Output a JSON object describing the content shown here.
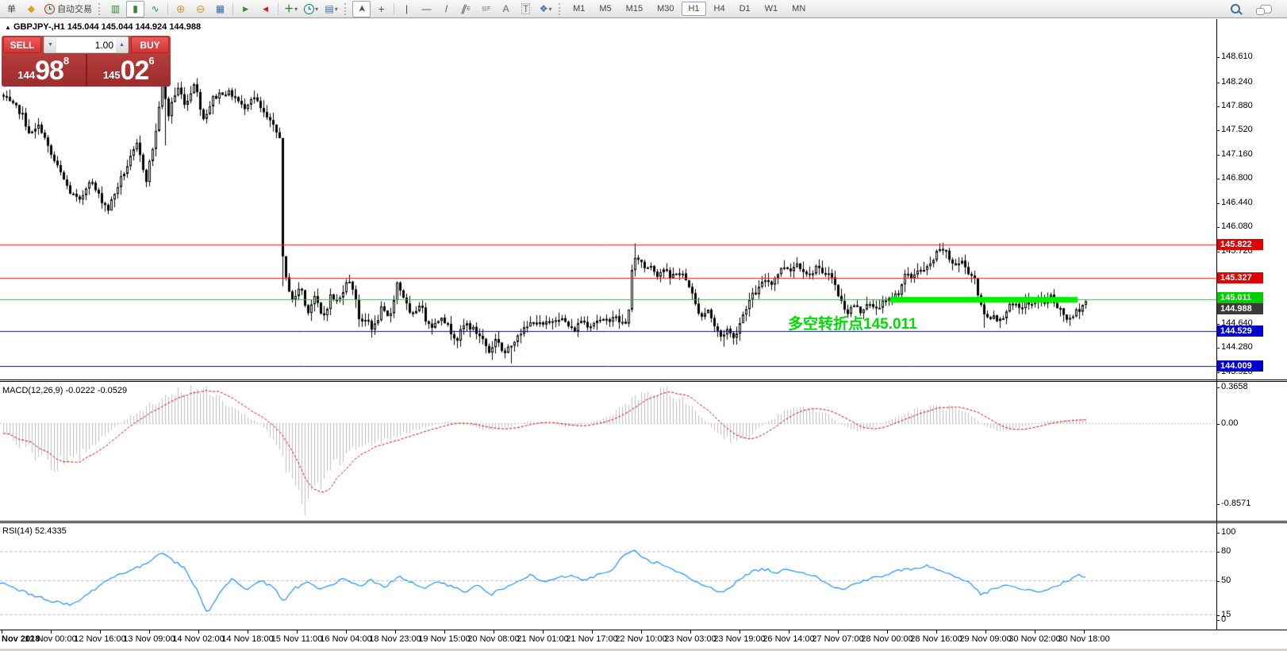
{
  "toolbar": {
    "partial_label": "单",
    "autotrade_label": "自动交易",
    "timeframes": [
      "M1",
      "M5",
      "M15",
      "M30",
      "H1",
      "H4",
      "D1",
      "W1",
      "MN"
    ],
    "active_timeframe": "H1"
  },
  "icons": {
    "new_order": "◆",
    "bars_chart": "▥",
    "candle_chart": "▮",
    "line_chart": "∿",
    "zoom_in": "⊕",
    "zoom_out": "⊖",
    "tile_windows": "▦",
    "auto_scroll": "▶",
    "chart_shift": "◀",
    "indicators": "＋",
    "template": "▤",
    "cursor": "➤",
    "crosshair": "+",
    "vline": "|",
    "hline": "—",
    "trendline": "/",
    "channel": "∥",
    "fibo": "≡",
    "text": "A",
    "textlabel": "T",
    "shapes": "❖",
    "dropdown": "▾",
    "symbol_marker": "▲"
  },
  "symbol_info": {
    "symbol": "GBPJPY-,H1",
    "ohlc": "145.044 145.044 144.924 144.988"
  },
  "trade_panel": {
    "sell_label": "SELL",
    "buy_label": "BUY",
    "volume": "1.00",
    "sell_prefix": "144",
    "sell_big": "98",
    "sell_sup": "8",
    "buy_prefix": "145",
    "buy_big": "02",
    "buy_sup": "6"
  },
  "annotation": {
    "text": "多空转折点145.011",
    "color": "#00DC00"
  },
  "indicator_labels": {
    "macd": "MACD(12,26,9) -0.0222 -0.0529",
    "rsi": "RSI(14) 52.4335"
  },
  "colors": {
    "line_red": "#FF2020",
    "line_green": "#00E000",
    "line_blue": "#0000D8",
    "thick_green": "#00EE00",
    "rsi_blue": "#1E90FF",
    "macd_signal_red": "#E00000",
    "macd_hist_gray": "#BEBEBE",
    "box_red": "#E00000",
    "box_green": "#00CC00",
    "box_blue": "#0000CC",
    "box_bid": "#3A3A3A"
  },
  "chart_data": {
    "type": "candlestick",
    "symbol": "GBPJPY-",
    "timeframe": "H1",
    "ohlc_display": {
      "open": 145.044,
      "high": 145.044,
      "low": 144.924,
      "close": 144.988
    },
    "price_axis_ticks": [
      148.61,
      148.24,
      147.88,
      147.52,
      147.16,
      146.8,
      146.44,
      146.08,
      145.72,
      144.64,
      144.28,
      143.92
    ],
    "hlines": [
      {
        "price": 145.822,
        "label": "145.822",
        "color": "#FF2020",
        "box": "#E00000"
      },
      {
        "price": 145.327,
        "label": "145.327",
        "color": "#FF2020",
        "box": "#E00000"
      },
      {
        "price": 145.011,
        "label": "145.011",
        "color": "#00E000",
        "box": "#00CC00",
        "thick_segment": {
          "x1": 1122,
          "x2": 1358,
          "width": 7,
          "color": "#00EE00"
        }
      },
      {
        "price": 144.529,
        "label": "144.529",
        "color": "#0000D8",
        "box": "#0000CC"
      },
      {
        "price": 144.009,
        "label": "144.009",
        "color": "#0000D8",
        "box": "#0000CC"
      }
    ],
    "bid_label": {
      "price": 144.988,
      "label": "144.988",
      "box": "#3A3A3A"
    },
    "price_path": [
      [
        2,
        148.05
      ],
      [
        14,
        147.9
      ],
      [
        26,
        147.8
      ],
      [
        38,
        147.45
      ],
      [
        50,
        147.6
      ],
      [
        62,
        147.2
      ],
      [
        75,
        146.9
      ],
      [
        88,
        146.6
      ],
      [
        100,
        146.45
      ],
      [
        112,
        146.8
      ],
      [
        124,
        146.55
      ],
      [
        136,
        146.35
      ],
      [
        148,
        146.7
      ],
      [
        160,
        147.0
      ],
      [
        172,
        147.3
      ],
      [
        184,
        146.8
      ],
      [
        196,
        147.5
      ],
      [
        202,
        148.1
      ],
      [
        206,
        148.3
      ],
      [
        210,
        147.65
      ],
      [
        216,
        147.95
      ],
      [
        224,
        148.15
      ],
      [
        234,
        147.9
      ],
      [
        244,
        148.25
      ],
      [
        256,
        147.7
      ],
      [
        268,
        148.0
      ],
      [
        280,
        148.1
      ],
      [
        294,
        148.05
      ],
      [
        306,
        147.85
      ],
      [
        318,
        148.05
      ],
      [
        330,
        147.8
      ],
      [
        342,
        147.6
      ],
      [
        350,
        147.45
      ],
      [
        352,
        147.45
      ],
      [
        356,
        145.6
      ],
      [
        360,
        145.3
      ],
      [
        370,
        144.95
      ],
      [
        378,
        145.25
      ],
      [
        386,
        144.8
      ],
      [
        396,
        145.05
      ],
      [
        406,
        144.7
      ],
      [
        416,
        145.05
      ],
      [
        426,
        144.95
      ],
      [
        436,
        145.3
      ],
      [
        446,
        145.15
      ],
      [
        454,
        144.6
      ],
      [
        462,
        144.72
      ],
      [
        470,
        144.55
      ],
      [
        480,
        144.85
      ],
      [
        490,
        144.7
      ],
      [
        500,
        145.25
      ],
      [
        508,
        145.05
      ],
      [
        518,
        144.7
      ],
      [
        528,
        144.95
      ],
      [
        536,
        144.72
      ],
      [
        546,
        144.6
      ],
      [
        556,
        144.78
      ],
      [
        566,
        144.55
      ],
      [
        576,
        144.42
      ],
      [
        586,
        144.65
      ],
      [
        596,
        144.55
      ],
      [
        606,
        144.45
      ],
      [
        616,
        144.22
      ],
      [
        626,
        144.45
      ],
      [
        634,
        144.18
      ],
      [
        642,
        144.28
      ],
      [
        652,
        144.5
      ],
      [
        662,
        144.56
      ],
      [
        672,
        144.7
      ],
      [
        682,
        144.6
      ],
      [
        692,
        144.66
      ],
      [
        702,
        144.76
      ],
      [
        712,
        144.66
      ],
      [
        722,
        144.52
      ],
      [
        732,
        144.7
      ],
      [
        742,
        144.62
      ],
      [
        752,
        144.7
      ],
      [
        762,
        144.66
      ],
      [
        772,
        144.76
      ],
      [
        782,
        144.66
      ],
      [
        790,
        144.62
      ],
      [
        797,
        145.55
      ],
      [
        804,
        145.62
      ],
      [
        812,
        145.48
      ],
      [
        820,
        145.52
      ],
      [
        828,
        145.38
      ],
      [
        836,
        145.46
      ],
      [
        844,
        145.32
      ],
      [
        852,
        145.42
      ],
      [
        860,
        145.36
      ],
      [
        868,
        145.22
      ],
      [
        876,
        144.92
      ],
      [
        884,
        144.76
      ],
      [
        892,
        144.86
      ],
      [
        900,
        144.6
      ],
      [
        908,
        144.45
      ],
      [
        916,
        144.56
      ],
      [
        924,
        144.42
      ],
      [
        932,
        144.66
      ],
      [
        940,
        144.9
      ],
      [
        948,
        145.06
      ],
      [
        956,
        145.16
      ],
      [
        964,
        145.3
      ],
      [
        972,
        145.26
      ],
      [
        980,
        145.4
      ],
      [
        988,
        145.5
      ],
      [
        996,
        145.46
      ],
      [
        1004,
        145.54
      ],
      [
        1012,
        145.46
      ],
      [
        1020,
        145.36
      ],
      [
        1028,
        145.5
      ],
      [
        1036,
        145.36
      ],
      [
        1044,
        145.44
      ],
      [
        1052,
        145.2
      ],
      [
        1060,
        144.96
      ],
      [
        1068,
        144.82
      ],
      [
        1076,
        144.92
      ],
      [
        1084,
        144.82
      ],
      [
        1092,
        144.96
      ],
      [
        1100,
        144.86
      ],
      [
        1108,
        144.92
      ],
      [
        1116,
        144.96
      ],
      [
        1124,
        145.02
      ],
      [
        1132,
        145.12
      ],
      [
        1140,
        145.36
      ],
      [
        1148,
        145.32
      ],
      [
        1156,
        145.46
      ],
      [
        1164,
        145.42
      ],
      [
        1172,
        145.52
      ],
      [
        1180,
        145.68
      ],
      [
        1188,
        145.76
      ],
      [
        1196,
        145.6
      ],
      [
        1204,
        145.52
      ],
      [
        1212,
        145.56
      ],
      [
        1220,
        145.42
      ],
      [
        1228,
        145.32
      ],
      [
        1236,
        144.88
      ],
      [
        1244,
        144.72
      ],
      [
        1252,
        144.78
      ],
      [
        1260,
        144.68
      ],
      [
        1268,
        144.86
      ],
      [
        1276,
        144.92
      ],
      [
        1284,
        144.86
      ],
      [
        1292,
        144.96
      ],
      [
        1300,
        144.92
      ],
      [
        1308,
        145.02
      ],
      [
        1316,
        144.96
      ],
      [
        1324,
        145.06
      ],
      [
        1332,
        144.86
      ],
      [
        1340,
        144.78
      ],
      [
        1348,
        144.68
      ],
      [
        1356,
        144.82
      ],
      [
        1364,
        144.92
      ],
      [
        1370,
        145.0
      ]
    ],
    "spikes": [
      {
        "x": 208,
        "price": 148.72,
        "side": "high"
      },
      {
        "x": 208,
        "price": 147.3,
        "side": "low"
      },
      {
        "x": 356,
        "price": 145.2,
        "side": "low"
      },
      {
        "x": 644,
        "price": 144.05,
        "side": "low"
      },
      {
        "x": 800,
        "price": 145.84,
        "side": "high"
      },
      {
        "x": 912,
        "price": 144.3,
        "side": "low"
      },
      {
        "x": 1188,
        "price": 145.85,
        "side": "high"
      },
      {
        "x": 1240,
        "price": 144.58,
        "side": "low"
      }
    ],
    "macd": {
      "name": "MACD(12,26,9)",
      "values": [
        -0.0222,
        -0.0529
      ],
      "axis_labels": [
        "0.3658",
        "0.00",
        "-0.8571"
      ],
      "path": [
        [
          0,
          -0.08
        ],
        [
          40,
          -0.3
        ],
        [
          70,
          -0.42
        ],
        [
          100,
          -0.35
        ],
        [
          130,
          -0.12
        ],
        [
          160,
          0.05
        ],
        [
          190,
          0.2
        ],
        [
          215,
          0.3
        ],
        [
          245,
          0.35
        ],
        [
          270,
          0.28
        ],
        [
          300,
          0.12
        ],
        [
          330,
          -0.02
        ],
        [
          350,
          -0.25
        ],
        [
          370,
          -0.6
        ],
        [
          388,
          -0.86
        ],
        [
          405,
          -0.65
        ],
        [
          425,
          -0.4
        ],
        [
          450,
          -0.25
        ],
        [
          480,
          -0.18
        ],
        [
          510,
          -0.1
        ],
        [
          540,
          -0.03
        ],
        [
          565,
          0.02
        ],
        [
          590,
          -0.03
        ],
        [
          615,
          -0.07
        ],
        [
          640,
          -0.04
        ],
        [
          665,
          0.02
        ],
        [
          690,
          0.0
        ],
        [
          715,
          -0.04
        ],
        [
          740,
          0.0
        ],
        [
          765,
          0.06
        ],
        [
          790,
          0.2
        ],
        [
          815,
          0.3
        ],
        [
          840,
          0.31
        ],
        [
          862,
          0.22
        ],
        [
          885,
          0.05
        ],
        [
          905,
          -0.12
        ],
        [
          925,
          -0.2
        ],
        [
          945,
          -0.12
        ],
        [
          968,
          0.02
        ],
        [
          990,
          0.12
        ],
        [
          1015,
          0.16
        ],
        [
          1040,
          0.1
        ],
        [
          1060,
          -0.02
        ],
        [
          1080,
          -0.08
        ],
        [
          1100,
          -0.04
        ],
        [
          1125,
          0.05
        ],
        [
          1150,
          0.12
        ],
        [
          1175,
          0.17
        ],
        [
          1200,
          0.15
        ],
        [
          1222,
          0.08
        ],
        [
          1240,
          -0.02
        ],
        [
          1258,
          -0.08
        ],
        [
          1278,
          -0.06
        ],
        [
          1298,
          -0.02
        ],
        [
          1318,
          0.02
        ],
        [
          1340,
          0.03
        ],
        [
          1368,
          0.04
        ]
      ]
    },
    "rsi": {
      "name": "RSI(14)",
      "value": 52.4335,
      "axis_labels": [
        "100",
        "80",
        "50",
        "15",
        "0"
      ],
      "levels": [
        80,
        50,
        15
      ],
      "path": [
        [
          0,
          48
        ],
        [
          30,
          38
        ],
        [
          60,
          30
        ],
        [
          90,
          24
        ],
        [
          110,
          35
        ],
        [
          130,
          48
        ],
        [
          155,
          58
        ],
        [
          180,
          65
        ],
        [
          205,
          80
        ],
        [
          218,
          70
        ],
        [
          232,
          63
        ],
        [
          248,
          40
        ],
        [
          262,
          16
        ],
        [
          275,
          35
        ],
        [
          292,
          52
        ],
        [
          310,
          40
        ],
        [
          328,
          50
        ],
        [
          345,
          42
        ],
        [
          358,
          28
        ],
        [
          372,
          42
        ],
        [
          388,
          48
        ],
        [
          402,
          40
        ],
        [
          418,
          46
        ],
        [
          435,
          52
        ],
        [
          452,
          44
        ],
        [
          468,
          50
        ],
        [
          485,
          42
        ],
        [
          502,
          55
        ],
        [
          518,
          48
        ],
        [
          535,
          40
        ],
        [
          552,
          50
        ],
        [
          568,
          44
        ],
        [
          585,
          38
        ],
        [
          602,
          45
        ],
        [
          618,
          35
        ],
        [
          635,
          42
        ],
        [
          652,
          50
        ],
        [
          668,
          55
        ],
        [
          685,
          48
        ],
        [
          702,
          52
        ],
        [
          718,
          55
        ],
        [
          735,
          50
        ],
        [
          752,
          55
        ],
        [
          768,
          58
        ],
        [
          785,
          75
        ],
        [
          800,
          82
        ],
        [
          812,
          72
        ],
        [
          828,
          68
        ],
        [
          845,
          62
        ],
        [
          862,
          55
        ],
        [
          878,
          48
        ],
        [
          895,
          42
        ],
        [
          910,
          38
        ],
        [
          928,
          48
        ],
        [
          945,
          58
        ],
        [
          962,
          62
        ],
        [
          978,
          58
        ],
        [
          995,
          62
        ],
        [
          1012,
          58
        ],
        [
          1028,
          55
        ],
        [
          1045,
          45
        ],
        [
          1062,
          40
        ],
        [
          1080,
          48
        ],
        [
          1098,
          52
        ],
        [
          1115,
          55
        ],
        [
          1132,
          60
        ],
        [
          1150,
          62
        ],
        [
          1168,
          65
        ],
        [
          1185,
          60
        ],
        [
          1202,
          55
        ],
        [
          1220,
          48
        ],
        [
          1238,
          35
        ],
        [
          1255,
          42
        ],
        [
          1272,
          45
        ],
        [
          1290,
          40
        ],
        [
          1308,
          38
        ],
        [
          1325,
          42
        ],
        [
          1342,
          48
        ],
        [
          1360,
          55
        ],
        [
          1368,
          54
        ]
      ]
    },
    "time_labels": [
      "Nov 2018",
      "12 Nov 00:00",
      "12 Nov 16:00",
      "13 Nov 09:00",
      "14 Nov 02:00",
      "14 Nov 18:00",
      "15 Nov 11:00",
      "16 Nov 04:00",
      "18 Nov 23:00",
      "19 Nov 15:00",
      "20 Nov 08:00",
      "21 Nov 01:00",
      "21 Nov 17:00",
      "22 Nov 10:00",
      "23 Nov 03:00",
      "23 Nov 19:00",
      "26 Nov 14:00",
      "27 Nov 07:00",
      "28 Nov 00:00",
      "28 Nov 16:00",
      "29 Nov 09:00",
      "30 Nov 02:00",
      "30 Nov 18:00"
    ],
    "bar_step": 4,
    "x_range": [
      2,
      1370
    ]
  }
}
